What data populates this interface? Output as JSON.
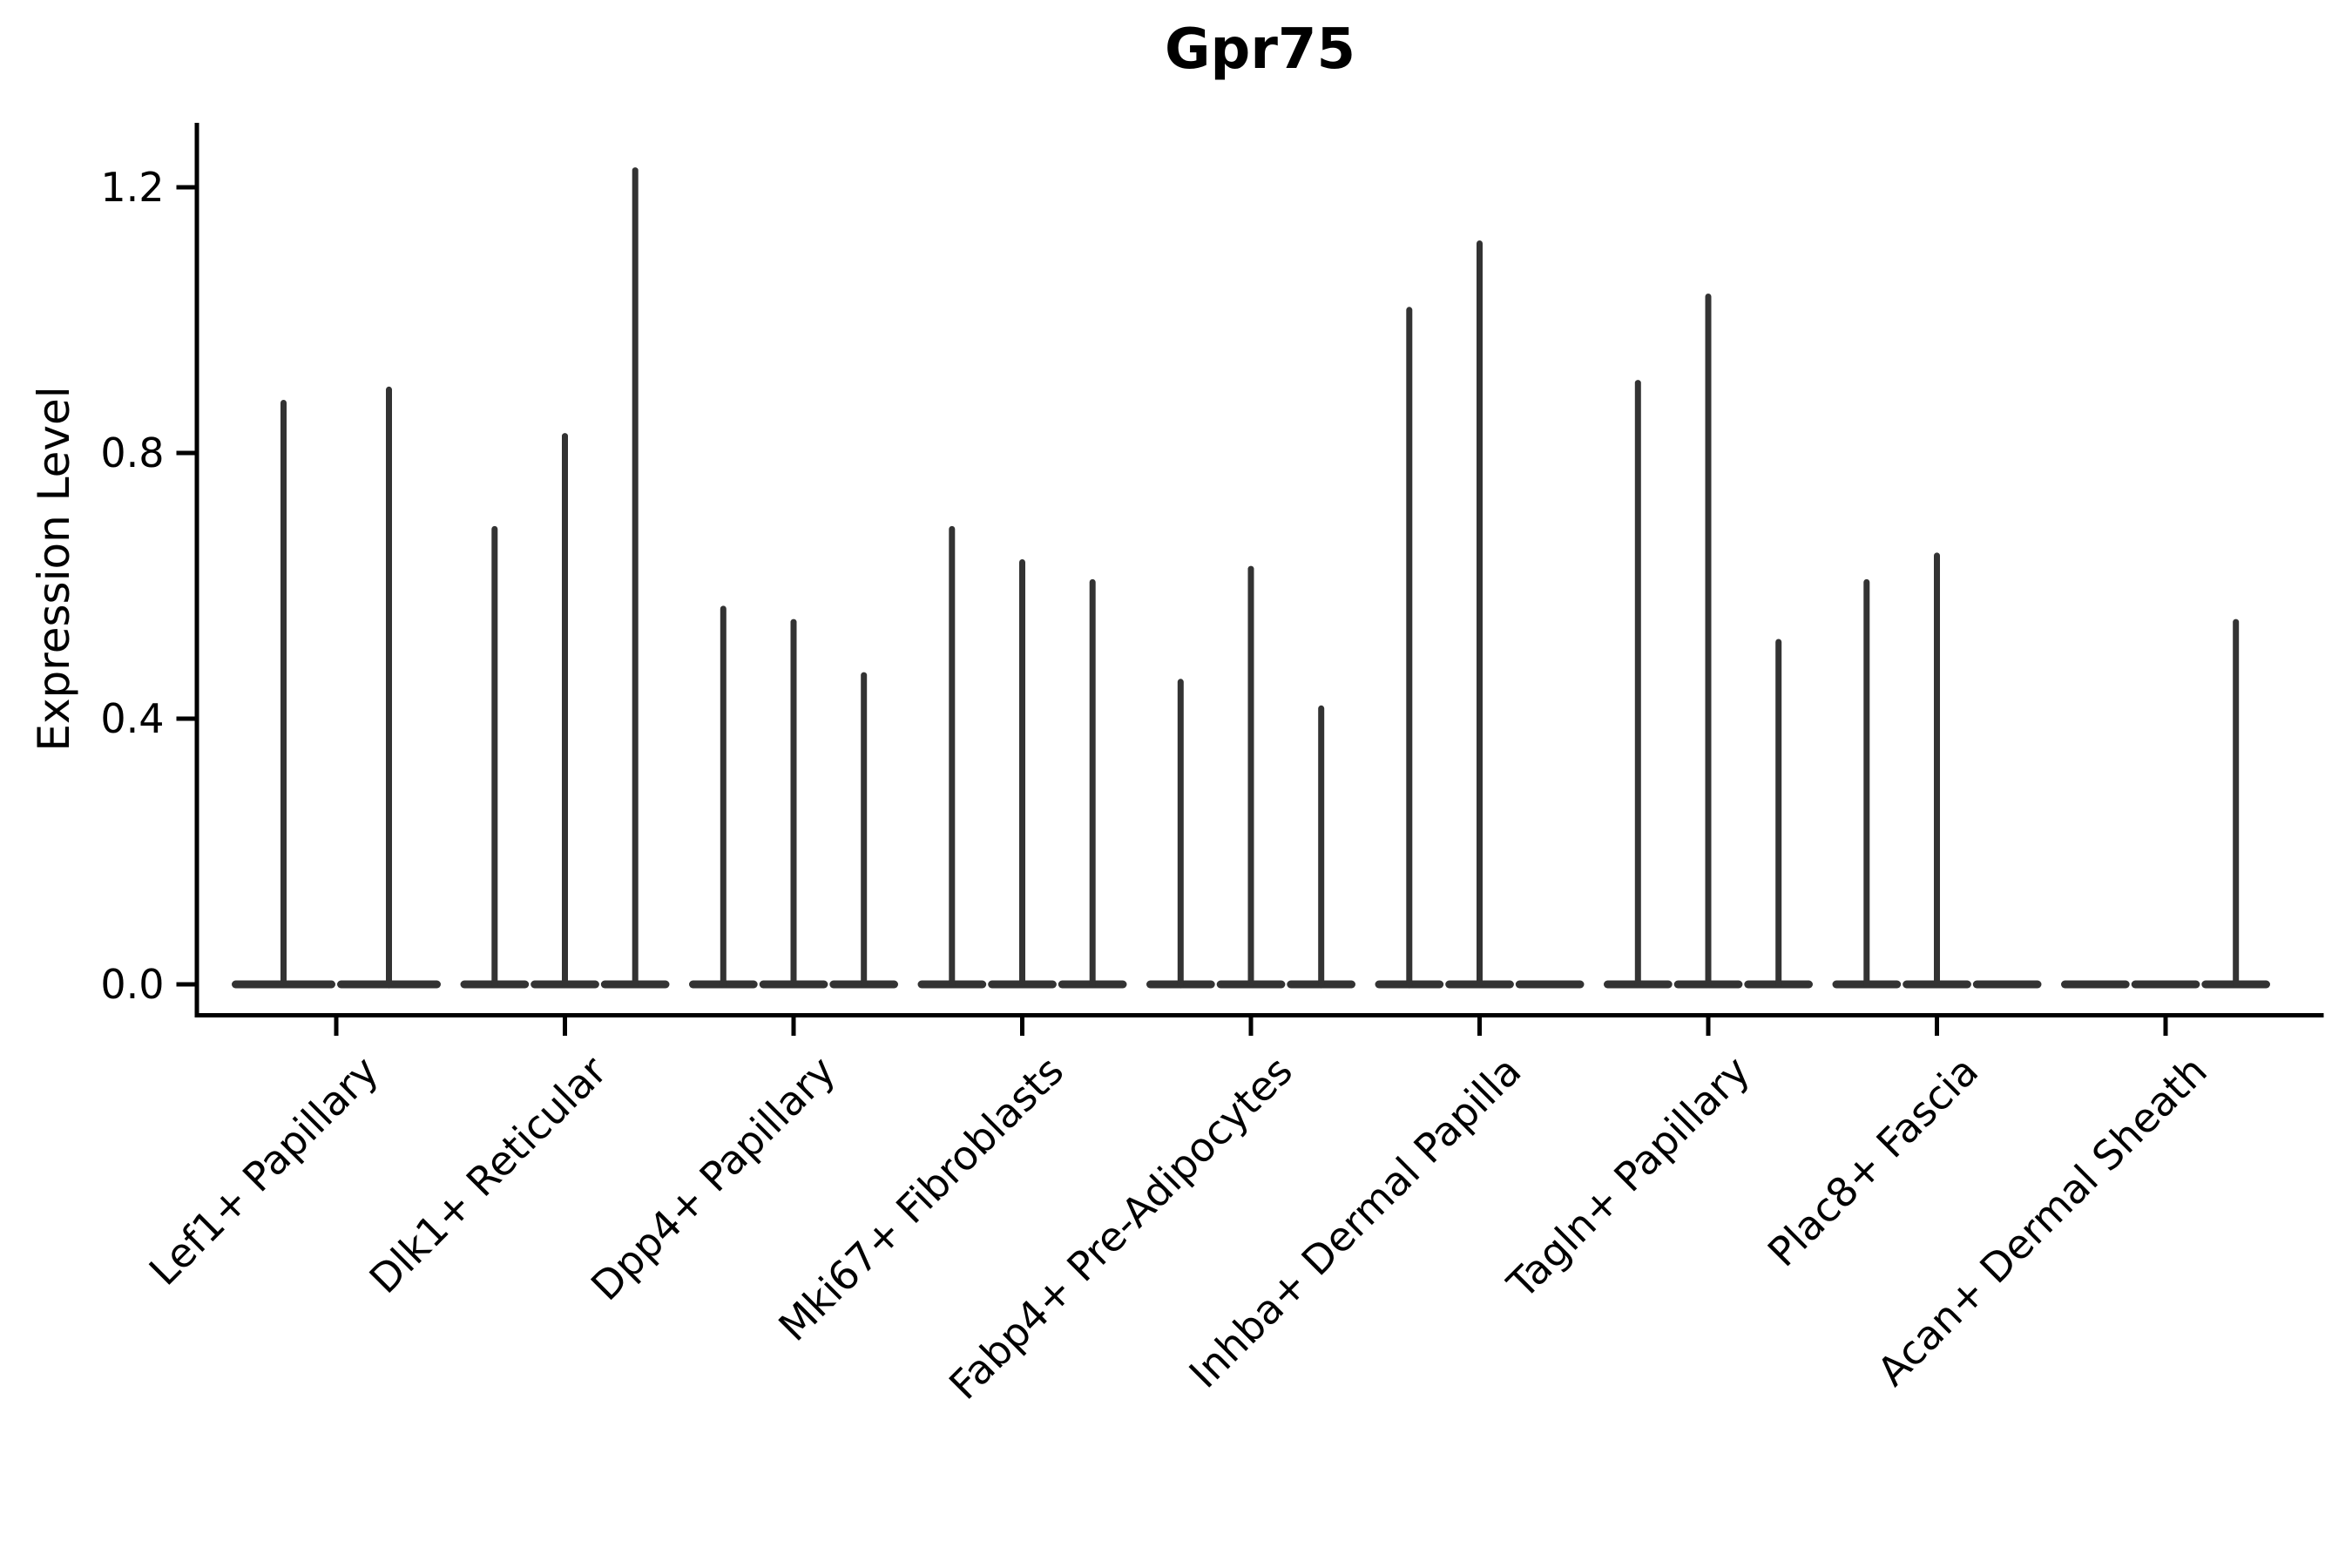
{
  "page": {
    "background_color": "#ffffff"
  },
  "chart": {
    "title": "Gpr75",
    "ylabel": "Expression Level"
  },
  "chart_data": {
    "type": "violin",
    "title": "Gpr75",
    "xlabel": "",
    "ylabel": "Expression Level",
    "ylim": [
      -0.046,
      1.295
    ],
    "yticks": [
      0.0,
      0.4,
      0.8,
      1.2
    ],
    "ytick_labels": [
      "0.0",
      "0.4",
      "0.8",
      "1.2"
    ],
    "grid": false,
    "legend_position": "none",
    "violin_color": "#333333",
    "axis_color": "#000000",
    "categories": [
      "Lef1+ Papillary",
      "Dlk1+ Reticular",
      "Dpp4+ Papillary",
      "Mki67+ Fibroblasts",
      "Fabp4+ Pre-Adipocytes",
      "Inhba+ Dermal Papilla",
      "Tagln+ Papillary",
      "Plac8+ Fascia",
      "Acan+ Dermal Sheath"
    ],
    "groups": [
      {
        "category": "Lef1+ Papillary",
        "violin_maxima": [
          0.88,
          0.9
        ]
      },
      {
        "category": "Dlk1+ Reticular",
        "violin_maxima": [
          0.69,
          0.83,
          1.23
        ]
      },
      {
        "category": "Dpp4+ Papillary",
        "violin_maxima": [
          0.57,
          0.55,
          0.47
        ]
      },
      {
        "category": "Mki67+ Fibroblasts",
        "violin_maxima": [
          0.69,
          0.64,
          0.61
        ]
      },
      {
        "category": "Fabp4+ Pre-Adipocytes",
        "violin_maxima": [
          0.46,
          0.63,
          0.42
        ]
      },
      {
        "category": "Inhba+ Dermal Papilla",
        "violin_maxima": [
          1.02,
          1.12,
          0.0
        ]
      },
      {
        "category": "Tagln+ Papillary",
        "violin_maxima": [
          0.91,
          1.04,
          0.52
        ]
      },
      {
        "category": "Plac8+ Fascia",
        "violin_maxima": [
          0.61,
          0.65,
          0.0
        ]
      },
      {
        "category": "Acan+ Dermal Sheath",
        "violin_maxima": [
          0.0,
          0.0,
          0.55
        ]
      }
    ]
  }
}
